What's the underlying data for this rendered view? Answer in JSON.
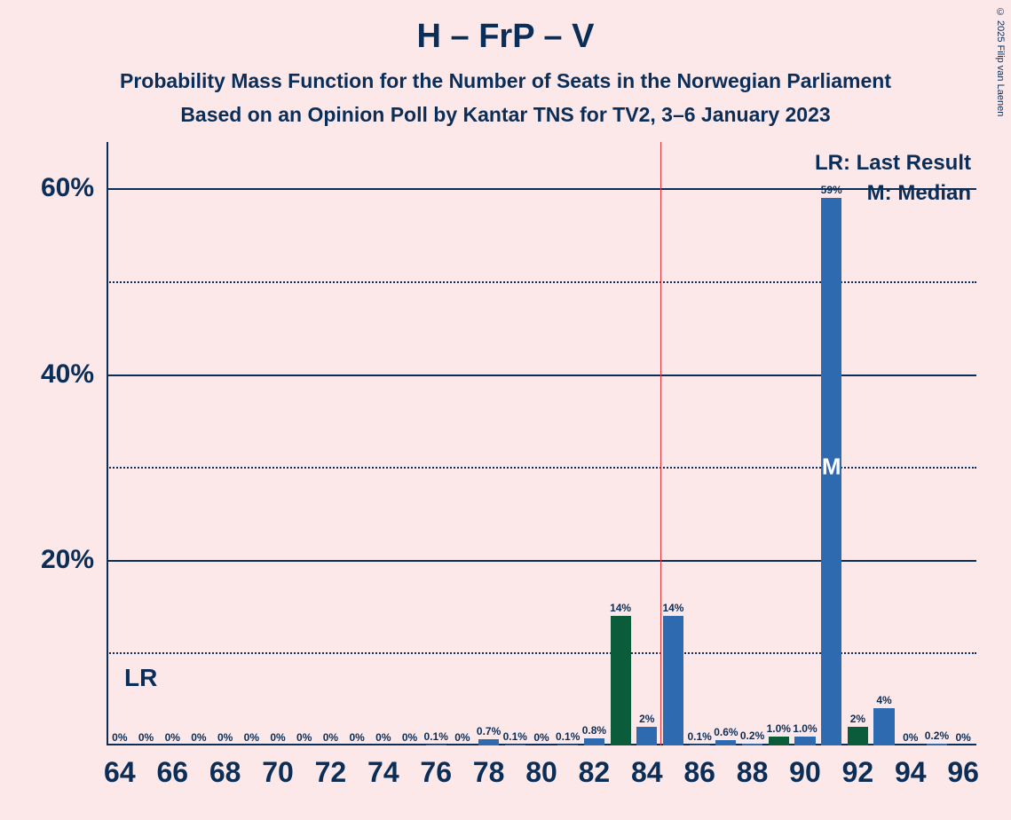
{
  "background_color": "#fce8e8",
  "text_color": "#0b2e59",
  "grid_color": "#0b2e59",
  "title": {
    "text": "H – FrP – V",
    "fontsize": 38
  },
  "subtitle1": {
    "text": "Probability Mass Function for the Number of Seats in the Norwegian Parliament",
    "fontsize": 23
  },
  "subtitle2": {
    "text": "Based on an Opinion Poll by Kantar TNS for TV2, 3–6 January 2023",
    "fontsize": 23
  },
  "copyright": "© 2025 Filip van Laenen",
  "chart": {
    "type": "bar",
    "xlim": [
      63.5,
      96.5
    ],
    "ylim": [
      0,
      65
    ],
    "y_ticks_major": [
      20,
      40,
      60
    ],
    "y_ticks_minor": [
      10,
      30,
      50
    ],
    "y_tick_labels": [
      "20%",
      "40%",
      "60%"
    ],
    "x_ticks": [
      64,
      66,
      68,
      70,
      72,
      74,
      76,
      78,
      80,
      82,
      84,
      86,
      88,
      90,
      92,
      94,
      96
    ],
    "bar_color_primary": "#2e6ab0",
    "bar_color_secondary": "#0b5c3b",
    "lr_line_color": "#e6373a",
    "lr_position": 84.5,
    "lr_label": "LR",
    "median_label": "M",
    "median_position": 91,
    "legend_lr": "LR: Last Result",
    "legend_m": "M: Median",
    "bars": [
      {
        "x": 64,
        "value": 0,
        "label": "0%",
        "color": "primary"
      },
      {
        "x": 65,
        "value": 0,
        "label": "0%",
        "color": "primary"
      },
      {
        "x": 66,
        "value": 0,
        "label": "0%",
        "color": "primary"
      },
      {
        "x": 67,
        "value": 0,
        "label": "0%",
        "color": "primary"
      },
      {
        "x": 68,
        "value": 0,
        "label": "0%",
        "color": "primary"
      },
      {
        "x": 69,
        "value": 0,
        "label": "0%",
        "color": "primary"
      },
      {
        "x": 70,
        "value": 0,
        "label": "0%",
        "color": "primary"
      },
      {
        "x": 71,
        "value": 0,
        "label": "0%",
        "color": "primary"
      },
      {
        "x": 72,
        "value": 0,
        "label": "0%",
        "color": "primary"
      },
      {
        "x": 73,
        "value": 0,
        "label": "0%",
        "color": "primary"
      },
      {
        "x": 74,
        "value": 0,
        "label": "0%",
        "color": "primary"
      },
      {
        "x": 75,
        "value": 0,
        "label": "0%",
        "color": "primary"
      },
      {
        "x": 76,
        "value": 0.1,
        "label": "0.1%",
        "color": "primary"
      },
      {
        "x": 77,
        "value": 0,
        "label": "0%",
        "color": "primary"
      },
      {
        "x": 78,
        "value": 0.7,
        "label": "0.7%",
        "color": "primary"
      },
      {
        "x": 79,
        "value": 0.1,
        "label": "0.1%",
        "color": "primary"
      },
      {
        "x": 80,
        "value": 0,
        "label": "0%",
        "color": "primary"
      },
      {
        "x": 81,
        "value": 0.1,
        "label": "0.1%",
        "color": "primary"
      },
      {
        "x": 82,
        "value": 0.8,
        "label": "0.8%",
        "color": "primary"
      },
      {
        "x": 83,
        "value": 14,
        "label": "14%",
        "color": "secondary"
      },
      {
        "x": 84,
        "value": 2,
        "label": "2%",
        "color": "primary"
      },
      {
        "x": 85,
        "value": 14,
        "label": "14%",
        "color": "primary"
      },
      {
        "x": 86,
        "value": 0.1,
        "label": "0.1%",
        "color": "primary"
      },
      {
        "x": 87,
        "value": 0.6,
        "label": "0.6%",
        "color": "primary"
      },
      {
        "x": 88,
        "value": 0.2,
        "label": "0.2%",
        "color": "primary"
      },
      {
        "x": 89,
        "value": 1.0,
        "label": "1.0%",
        "color": "secondary"
      },
      {
        "x": 90,
        "value": 1.0,
        "label": "1.0%",
        "color": "primary"
      },
      {
        "x": 91,
        "value": 59,
        "label": "59%",
        "color": "primary"
      },
      {
        "x": 92,
        "value": 2,
        "label": "2%",
        "color": "secondary"
      },
      {
        "x": 93,
        "value": 4,
        "label": "4%",
        "color": "primary"
      },
      {
        "x": 94,
        "value": 0,
        "label": "0%",
        "color": "primary"
      },
      {
        "x": 95,
        "value": 0.2,
        "label": "0.2%",
        "color": "primary"
      },
      {
        "x": 96,
        "value": 0,
        "label": "0%",
        "color": "primary"
      }
    ]
  }
}
